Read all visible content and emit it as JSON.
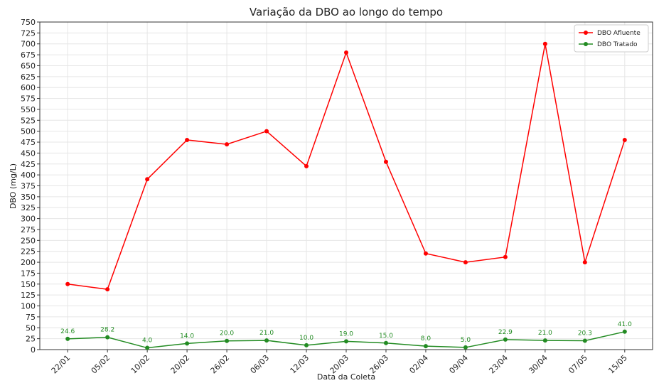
{
  "chart_data": {
    "type": "line",
    "title": "Variação da DBO ao longo do tempo",
    "xlabel": "Data da Coleta",
    "ylabel": "DBO (mg/L)",
    "categories": [
      "22/01",
      "05/02",
      "10/02",
      "20/02",
      "26/02",
      "06/03",
      "12/03",
      "20/03",
      "26/03",
      "02/04",
      "09/04",
      "23/04",
      "30/04",
      "07/05",
      "15/05"
    ],
    "series": [
      {
        "name": "DBO Afluente",
        "color": "#ff0000",
        "values": [
          150,
          138,
          390,
          480,
          470,
          500,
          420,
          680,
          430,
          220,
          200,
          212,
          700,
          200,
          480
        ]
      },
      {
        "name": "DBO Tratado",
        "color": "#228b22",
        "values": [
          24.6,
          28.2,
          4.0,
          14.0,
          20.0,
          21.0,
          10.0,
          19.0,
          15.0,
          8.0,
          5.0,
          22.9,
          21.0,
          20.3,
          41.0
        ],
        "value_labels": [
          "24.6",
          "28.2",
          "4.0",
          "14.0",
          "20.0",
          "21.0",
          "10.0",
          "19.0",
          "15.0",
          "8.0",
          "5.0",
          "22.9",
          "21.0",
          "20.3",
          "41.0"
        ]
      }
    ],
    "ylim": [
      0,
      750
    ],
    "yticks": [
      0,
      25,
      50,
      75,
      100,
      125,
      150,
      175,
      200,
      225,
      250,
      275,
      300,
      325,
      350,
      375,
      400,
      425,
      450,
      475,
      500,
      525,
      550,
      575,
      600,
      625,
      650,
      675,
      700,
      725,
      750
    ],
    "grid": true,
    "legend": "upper right"
  }
}
